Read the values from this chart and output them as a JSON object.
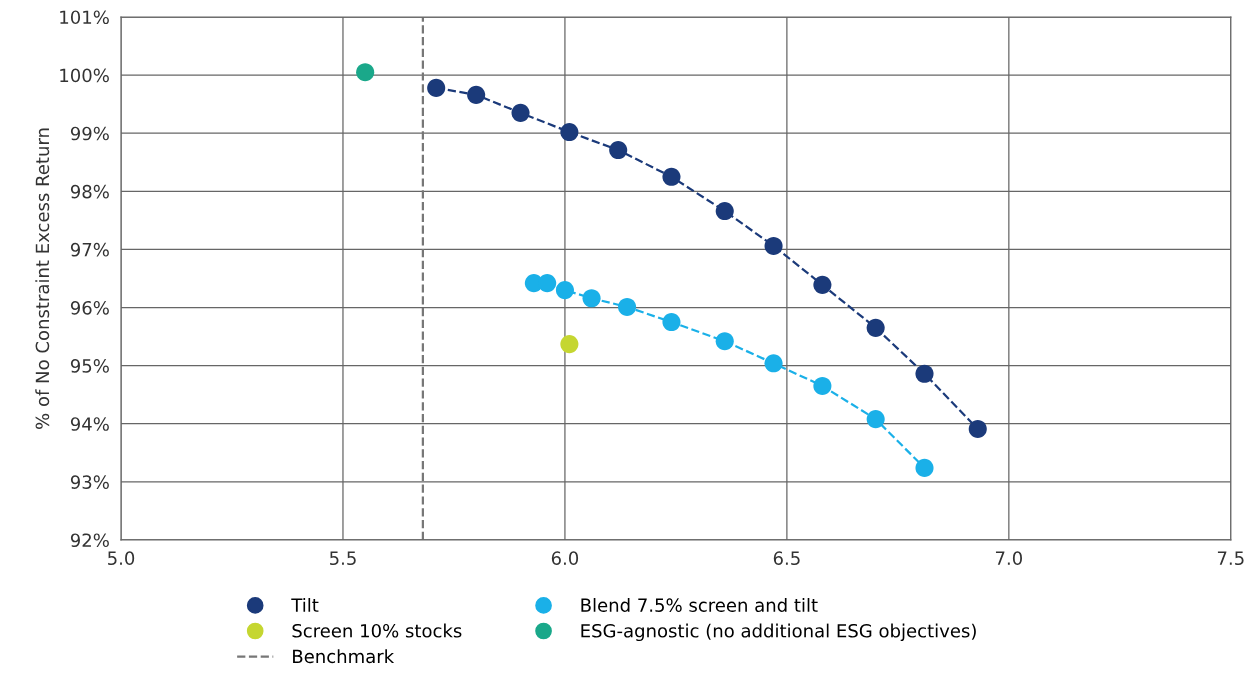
{
  "chart_data": {
    "type": "scatter",
    "ylabel": "% of No Constraint Excess Return",
    "xlim": [
      5.0,
      7.5
    ],
    "xticks": [
      {
        "value": 5.0,
        "label": "5.0"
      },
      {
        "value": 5.5,
        "label": "5.5"
      },
      {
        "value": 6.0,
        "label": "6.0"
      },
      {
        "value": 6.5,
        "label": "6.5"
      },
      {
        "value": 7.0,
        "label": "7.0"
      },
      {
        "value": 7.5,
        "label": "7.5"
      }
    ],
    "ylim": [
      92,
      101
    ],
    "yticks": [
      {
        "value": 92,
        "label": "92%"
      },
      {
        "value": 93,
        "label": "93%"
      },
      {
        "value": 94,
        "label": "94%"
      },
      {
        "value": 95,
        "label": "95%"
      },
      {
        "value": 96,
        "label": "96%"
      },
      {
        "value": 97,
        "label": "97%"
      },
      {
        "value": 98,
        "label": "98%"
      },
      {
        "value": 99,
        "label": "99%"
      },
      {
        "value": 100,
        "label": "100%"
      },
      {
        "value": 101,
        "label": "101%"
      }
    ],
    "grid": true,
    "legend": "bottom left",
    "marker": "circle",
    "series": [
      {
        "name": "Tilt",
        "type": "line",
        "line_style": "dashed",
        "color": "#1b3a7a",
        "x": [
          5.71,
          5.8,
          5.9,
          6.01,
          6.12,
          6.24,
          6.36,
          6.47,
          6.58,
          6.7,
          6.81,
          6.93
        ],
        "values": [
          99.78,
          99.66,
          99.35,
          99.02,
          98.71,
          98.25,
          97.66,
          97.06,
          96.39,
          95.65,
          94.86,
          93.91
        ]
      },
      {
        "name": "Blend 7.5% screen and tilt",
        "type": "line",
        "line_style": "dashed",
        "color": "#1ab0e8",
        "x": [
          5.93,
          5.96,
          6.0,
          6.06,
          6.14,
          6.24,
          6.36,
          6.47,
          6.58,
          6.7,
          6.81
        ],
        "values": [
          96.42,
          96.42,
          96.3,
          96.16,
          96.01,
          95.75,
          95.42,
          95.04,
          94.65,
          94.08,
          93.24
        ]
      },
      {
        "name": "Screen 10% stocks",
        "color": "#c5d631",
        "x": [
          6.01
        ],
        "values": [
          95.37
        ]
      },
      {
        "name": "ESG-agnostic (no additional ESG objectives)",
        "color": "#1aa88a",
        "x": [
          5.55
        ],
        "values": [
          100.05
        ]
      }
    ],
    "ref_lines": [
      {
        "axis": "x",
        "value": 5.68,
        "label": "Benchmark",
        "color": "#777777",
        "line_style": "dashed"
      }
    ]
  }
}
